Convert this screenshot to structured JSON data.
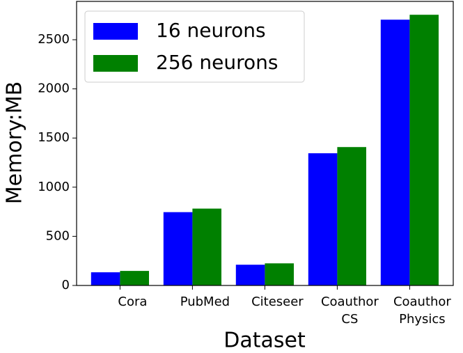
{
  "chart_data": {
    "type": "bar",
    "x_label": "Dataset",
    "y_label": "Memory:MB",
    "categories": [
      "Cora",
      "PubMed",
      "Citeseer",
      "Coauthor\nCS",
      "Coauthor\nPhysics"
    ],
    "series": [
      {
        "name": "16 neurons",
        "color": "#0000ff",
        "values": [
          134,
          746,
          211,
          1345,
          2704
        ]
      },
      {
        "name": "256 neurons",
        "color": "#008000",
        "values": [
          148,
          782,
          225,
          1408,
          2754
        ]
      }
    ],
    "ylim": [
      0,
      2890
    ],
    "yticks": [
      0,
      500,
      1000,
      1500,
      2000,
      2500
    ],
    "legend": "upper left"
  }
}
